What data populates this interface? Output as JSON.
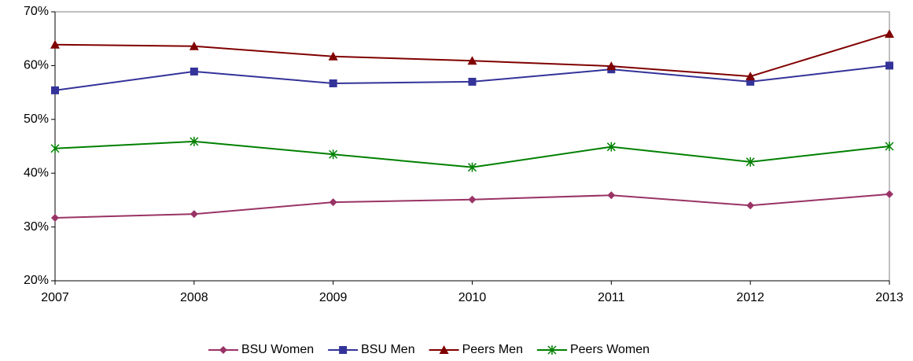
{
  "chart_data": {
    "type": "line",
    "categories": [
      "2007",
      "2008",
      "2009",
      "2010",
      "2011",
      "2012",
      "2013"
    ],
    "series": [
      {
        "name": "BSU Women",
        "color": "#993366",
        "marker": "diamond",
        "values": [
          31.7,
          32.4,
          34.6,
          35.1,
          35.9,
          34.0,
          36.1
        ]
      },
      {
        "name": "BSU Men",
        "color": "#333399",
        "marker": "square",
        "values": [
          55.4,
          58.9,
          56.7,
          57.0,
          59.3,
          57.0,
          60.0
        ]
      },
      {
        "name": "Peers Men",
        "color": "#800000",
        "marker": "triangle",
        "values": [
          63.9,
          63.6,
          61.7,
          60.9,
          59.9,
          58.0,
          65.9
        ]
      },
      {
        "name": "Peers Women",
        "color": "#008000",
        "marker": "asterisk",
        "values": [
          44.6,
          45.9,
          43.5,
          41.1,
          44.9,
          42.1,
          45.0
        ]
      }
    ],
    "ylim": [
      20,
      70
    ],
    "yticks": [
      {
        "value": 20,
        "label": "20%"
      },
      {
        "value": 30,
        "label": "30%"
      },
      {
        "value": 40,
        "label": "40%"
      },
      {
        "value": 50,
        "label": "50%"
      },
      {
        "value": 60,
        "label": "60%"
      },
      {
        "value": 70,
        "label": "70%"
      }
    ],
    "grid": false,
    "legend": "bottom"
  }
}
